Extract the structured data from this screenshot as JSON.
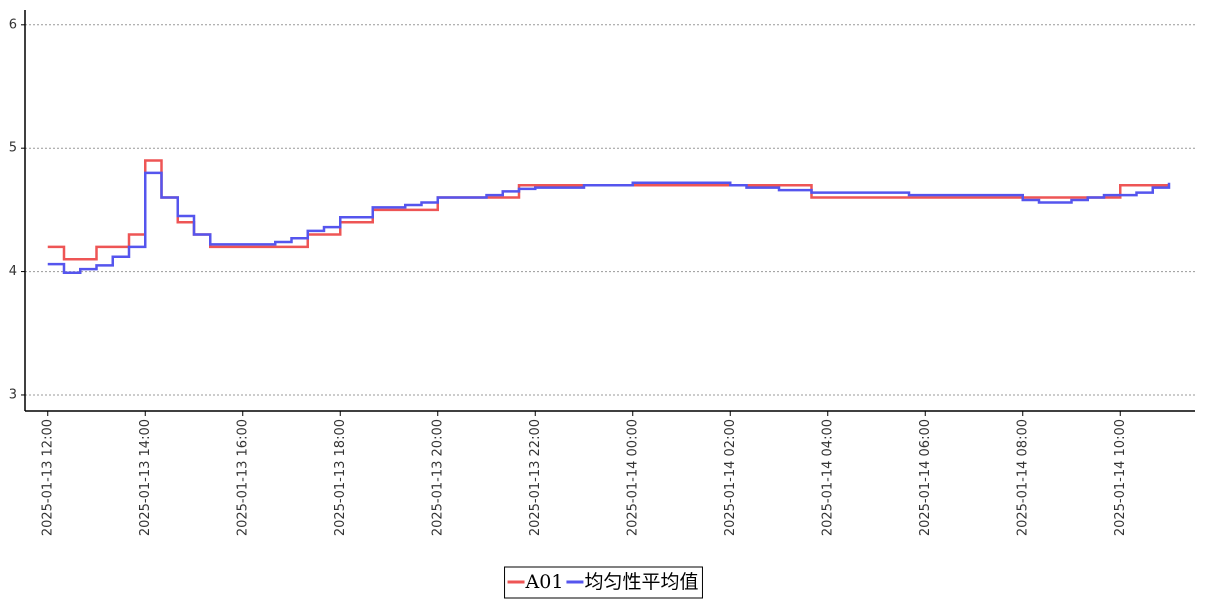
{
  "chart_data": {
    "type": "line",
    "step": true,
    "x": [
      "2025-01-13 12:00",
      "2025-01-13 12:20",
      "2025-01-13 12:40",
      "2025-01-13 13:00",
      "2025-01-13 13:20",
      "2025-01-13 13:40",
      "2025-01-13 14:00",
      "2025-01-13 14:20",
      "2025-01-13 14:40",
      "2025-01-13 15:00",
      "2025-01-13 15:20",
      "2025-01-13 15:40",
      "2025-01-13 16:00",
      "2025-01-13 16:20",
      "2025-01-13 16:40",
      "2025-01-13 17:00",
      "2025-01-13 17:20",
      "2025-01-13 17:40",
      "2025-01-13 18:00",
      "2025-01-13 18:20",
      "2025-01-13 18:40",
      "2025-01-13 19:00",
      "2025-01-13 19:20",
      "2025-01-13 19:40",
      "2025-01-13 20:00",
      "2025-01-13 20:20",
      "2025-01-13 20:40",
      "2025-01-13 21:00",
      "2025-01-13 21:20",
      "2025-01-13 21:40",
      "2025-01-13 22:00",
      "2025-01-13 22:20",
      "2025-01-13 22:40",
      "2025-01-13 23:00",
      "2025-01-13 23:20",
      "2025-01-13 23:40",
      "2025-01-14 00:00",
      "2025-01-14 00:20",
      "2025-01-14 00:40",
      "2025-01-14 01:00",
      "2025-01-14 01:20",
      "2025-01-14 01:40",
      "2025-01-14 02:00",
      "2025-01-14 02:20",
      "2025-01-14 02:40",
      "2025-01-14 03:00",
      "2025-01-14 03:20",
      "2025-01-14 03:40",
      "2025-01-14 04:00",
      "2025-01-14 04:20",
      "2025-01-14 04:40",
      "2025-01-14 05:00",
      "2025-01-14 05:20",
      "2025-01-14 05:40",
      "2025-01-14 06:00",
      "2025-01-14 06:20",
      "2025-01-14 06:40",
      "2025-01-14 07:00",
      "2025-01-14 07:20",
      "2025-01-14 07:40",
      "2025-01-14 08:00",
      "2025-01-14 08:20",
      "2025-01-14 08:40",
      "2025-01-14 09:00",
      "2025-01-14 09:20",
      "2025-01-14 09:40",
      "2025-01-14 10:00",
      "2025-01-14 10:20",
      "2025-01-14 10:40",
      "2025-01-14 11:00"
    ],
    "series": [
      {
        "name": "A01",
        "color": "#ee5555",
        "values": [
          4.2,
          4.1,
          4.1,
          4.2,
          4.2,
          4.3,
          4.9,
          4.6,
          4.4,
          4.3,
          4.2,
          4.2,
          4.2,
          4.2,
          4.2,
          4.2,
          4.3,
          4.3,
          4.4,
          4.4,
          4.5,
          4.5,
          4.5,
          4.5,
          4.6,
          4.6,
          4.6,
          4.6,
          4.6,
          4.7,
          4.7,
          4.7,
          4.7,
          4.7,
          4.7,
          4.7,
          4.7,
          4.7,
          4.7,
          4.7,
          4.7,
          4.7,
          4.7,
          4.7,
          4.7,
          4.7,
          4.7,
          4.6,
          4.6,
          4.6,
          4.6,
          4.6,
          4.6,
          4.6,
          4.6,
          4.6,
          4.6,
          4.6,
          4.6,
          4.6,
          4.6,
          4.6,
          4.6,
          4.6,
          4.6,
          4.6,
          4.7,
          4.7,
          4.7,
          4.7
        ]
      },
      {
        "name": "均匀性平均值",
        "color": "#5555ee",
        "values": [
          4.06,
          3.99,
          4.02,
          4.05,
          4.12,
          4.2,
          4.8,
          4.6,
          4.45,
          4.3,
          4.22,
          4.22,
          4.22,
          4.22,
          4.24,
          4.27,
          4.33,
          4.36,
          4.44,
          4.44,
          4.52,
          4.52,
          4.54,
          4.56,
          4.6,
          4.6,
          4.6,
          4.62,
          4.65,
          4.67,
          4.68,
          4.68,
          4.68,
          4.7,
          4.7,
          4.7,
          4.72,
          4.72,
          4.72,
          4.72,
          4.72,
          4.72,
          4.7,
          4.68,
          4.68,
          4.66,
          4.66,
          4.64,
          4.64,
          4.64,
          4.64,
          4.64,
          4.64,
          4.62,
          4.62,
          4.62,
          4.62,
          4.62,
          4.62,
          4.62,
          4.58,
          4.56,
          4.56,
          4.58,
          4.6,
          4.62,
          4.62,
          4.64,
          4.68,
          4.72
        ]
      }
    ],
    "xlim": [
      "2025-01-13 11:32",
      "2025-01-14 11:32"
    ],
    "xticks": [
      "2025-01-13 12:00",
      "2025-01-13 14:00",
      "2025-01-13 16:00",
      "2025-01-13 18:00",
      "2025-01-13 20:00",
      "2025-01-13 22:00",
      "2025-01-14 00:00",
      "2025-01-14 02:00",
      "2025-01-14 04:00",
      "2025-01-14 06:00",
      "2025-01-14 08:00",
      "2025-01-14 10:00"
    ],
    "ylim": [
      2.87,
      6.12
    ],
    "yticks": [
      3,
      4,
      5,
      6
    ],
    "grid": true,
    "legend": "bottom"
  }
}
